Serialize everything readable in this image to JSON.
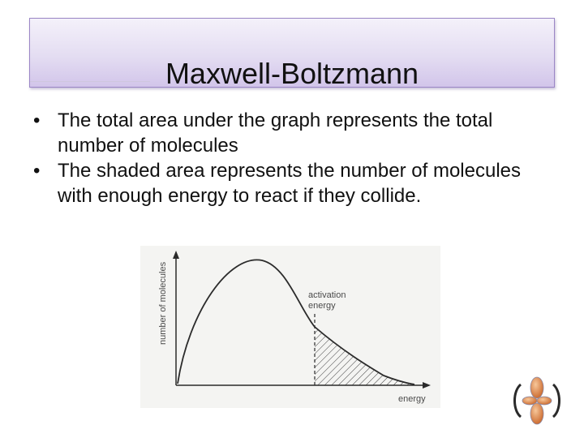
{
  "slide": {
    "title": "Maxwell-Boltzmann",
    "bullets": [
      {
        "marker": "•",
        "text": "The total area under the graph represents the total number of molecules"
      },
      {
        "marker": "•",
        "text": "The shaded area represents the number of molecules with enough energy to react if they collide."
      }
    ]
  },
  "graph": {
    "y_axis_label": "number of molecules",
    "x_axis_label": "energy",
    "annotation_line1": "activation",
    "annotation_line2": "energy"
  },
  "colors": {
    "title_border": "#9b86c6",
    "title_fill_top": "#f4f1fa",
    "title_fill_bottom": "#d2c5ea",
    "text": "#111111",
    "graph_ink": "#2b2b2b",
    "logo_orbital": "#e89a55"
  },
  "icons": {
    "corner_logo": "orbital-logo-icon"
  }
}
